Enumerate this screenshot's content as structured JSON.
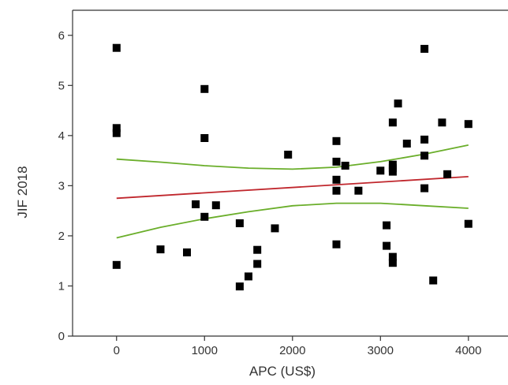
{
  "chart_data": {
    "type": "scatter",
    "title": "",
    "xlabel": "APC (US$)",
    "ylabel": "JIF 2018",
    "xlim": [
      -500,
      4450
    ],
    "ylim": [
      0,
      6.5
    ],
    "xticks": [
      0,
      1000,
      2000,
      3000,
      4000
    ],
    "yticks": [
      0,
      1,
      2,
      3,
      4,
      5,
      6
    ],
    "grid": false,
    "legend": "none",
    "colors": {
      "points": "#000000",
      "regression": "#c0272d",
      "confidence_band": "#6aae2a",
      "axes": "#333333"
    },
    "points": [
      [
        0,
        5.75
      ],
      [
        0,
        4.15
      ],
      [
        0,
        4.05
      ],
      [
        0,
        1.42
      ],
      [
        500,
        1.73
      ],
      [
        800,
        1.67
      ],
      [
        900,
        2.63
      ],
      [
        1000,
        4.93
      ],
      [
        1000,
        3.95
      ],
      [
        1000,
        2.38
      ],
      [
        1130,
        2.61
      ],
      [
        1400,
        2.25
      ],
      [
        1400,
        0.99
      ],
      [
        1500,
        1.19
      ],
      [
        1600,
        1.72
      ],
      [
        1600,
        1.44
      ],
      [
        1800,
        2.15
      ],
      [
        1950,
        3.62
      ],
      [
        2500,
        3.89
      ],
      [
        2500,
        3.48
      ],
      [
        2500,
        3.12
      ],
      [
        2500,
        2.9
      ],
      [
        2500,
        1.83
      ],
      [
        2600,
        3.4
      ],
      [
        2750,
        2.9
      ],
      [
        3000,
        3.3
      ],
      [
        3070,
        2.21
      ],
      [
        3070,
        1.8
      ],
      [
        3140,
        4.26
      ],
      [
        3140,
        3.42
      ],
      [
        3140,
        3.35
      ],
      [
        3140,
        3.28
      ],
      [
        3140,
        1.58
      ],
      [
        3140,
        1.46
      ],
      [
        3200,
        4.64
      ],
      [
        3300,
        3.84
      ],
      [
        3500,
        5.73
      ],
      [
        3500,
        3.92
      ],
      [
        3500,
        3.6
      ],
      [
        3500,
        2.95
      ],
      [
        3600,
        1.11
      ],
      [
        3700,
        4.26
      ],
      [
        3760,
        3.23
      ],
      [
        4000,
        4.23
      ],
      [
        4000,
        2.24
      ]
    ],
    "regression_line": {
      "x": [
        0,
        4000
      ],
      "y": [
        2.75,
        3.18
      ]
    },
    "upper_band": {
      "x": [
        0,
        500,
        1000,
        1500,
        2000,
        2500,
        3000,
        3500,
        4000
      ],
      "y": [
        3.53,
        3.47,
        3.4,
        3.35,
        3.33,
        3.37,
        3.48,
        3.63,
        3.81
      ]
    },
    "lower_band": {
      "x": [
        0,
        500,
        1000,
        1500,
        2000,
        2500,
        3000,
        3500,
        4000
      ],
      "y": [
        1.96,
        2.17,
        2.34,
        2.48,
        2.6,
        2.65,
        2.65,
        2.6,
        2.55
      ]
    }
  }
}
